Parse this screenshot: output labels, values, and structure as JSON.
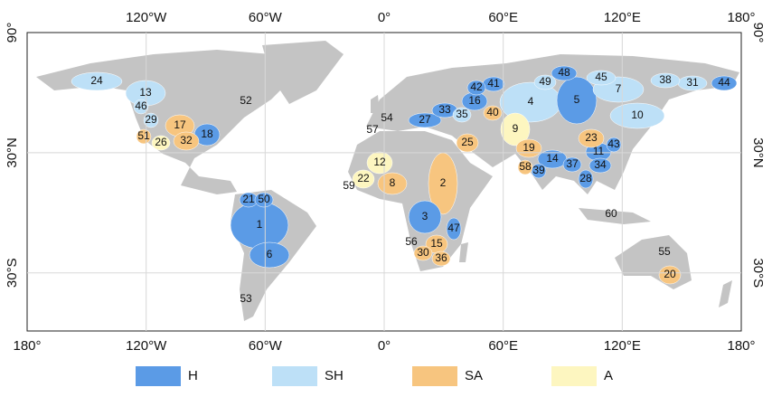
{
  "map": {
    "xlim": [
      -180,
      180
    ],
    "ylim": [
      -59,
      90
    ],
    "xticks": [
      {
        "value": -180,
        "label": "180°"
      },
      {
        "value": -120,
        "label": "120°W"
      },
      {
        "value": -60,
        "label": "60°W"
      },
      {
        "value": 0,
        "label": "0°"
      },
      {
        "value": 60,
        "label": "60°E"
      },
      {
        "value": 120,
        "label": "120°E"
      },
      {
        "value": 180,
        "label": "180°"
      }
    ],
    "yticks": [
      {
        "value": 90,
        "label": "90°"
      },
      {
        "value": 30,
        "label": "30°N"
      },
      {
        "value": -30,
        "label": "30°S"
      }
    ],
    "legend": [
      {
        "name": "H",
        "color": "#5b9be6"
      },
      {
        "name": "SH",
        "color": "#bde0f7"
      },
      {
        "name": "SA",
        "color": "#f7c57f"
      },
      {
        "name": "A",
        "color": "#fdf6c0"
      }
    ],
    "basins": [
      {
        "label": "1",
        "class": "H"
      },
      {
        "label": "2",
        "class": "SA"
      },
      {
        "label": "3",
        "class": "H"
      },
      {
        "label": "4",
        "class": "SH"
      },
      {
        "label": "5",
        "class": "H"
      },
      {
        "label": "6",
        "class": "H"
      },
      {
        "label": "7",
        "class": "SH"
      },
      {
        "label": "8",
        "class": "SA"
      },
      {
        "label": "9",
        "class": "A"
      },
      {
        "label": "10",
        "class": "SH"
      },
      {
        "label": "11",
        "class": "H"
      },
      {
        "label": "12",
        "class": "A"
      },
      {
        "label": "13",
        "class": "SH"
      },
      {
        "label": "14",
        "class": "H"
      },
      {
        "label": "15",
        "class": "SA"
      },
      {
        "label": "16",
        "class": "H"
      },
      {
        "label": "17",
        "class": "SA"
      },
      {
        "label": "18",
        "class": "H"
      },
      {
        "label": "19",
        "class": "SA"
      },
      {
        "label": "20",
        "class": "SA"
      },
      {
        "label": "21",
        "class": "H"
      },
      {
        "label": "22",
        "class": "A"
      },
      {
        "label": "23",
        "class": "SA"
      },
      {
        "label": "24",
        "class": "SH"
      },
      {
        "label": "25",
        "class": "SA"
      },
      {
        "label": "26",
        "class": "A"
      },
      {
        "label": "27",
        "class": "H"
      },
      {
        "label": "28",
        "class": "H"
      },
      {
        "label": "29",
        "class": "SH"
      },
      {
        "label": "30",
        "class": "SA"
      },
      {
        "label": "31",
        "class": "SH"
      },
      {
        "label": "32",
        "class": "SA"
      },
      {
        "label": "33",
        "class": "H"
      },
      {
        "label": "34",
        "class": "H"
      },
      {
        "label": "35",
        "class": "SH"
      },
      {
        "label": "36",
        "class": "SA"
      },
      {
        "label": "37",
        "class": "H"
      },
      {
        "label": "38",
        "class": "SH"
      },
      {
        "label": "39",
        "class": "H"
      },
      {
        "label": "40",
        "class": "SA"
      },
      {
        "label": "41",
        "class": "H"
      },
      {
        "label": "42",
        "class": "H"
      },
      {
        "label": "43",
        "class": "H"
      },
      {
        "label": "44",
        "class": "H"
      },
      {
        "label": "45",
        "class": "SH"
      },
      {
        "label": "46",
        "class": "SH"
      },
      {
        "label": "47",
        "class": "H"
      },
      {
        "label": "48",
        "class": "H"
      },
      {
        "label": "49",
        "class": "SH"
      },
      {
        "label": "50",
        "class": "H"
      },
      {
        "label": "51",
        "class": "SA"
      },
      {
        "label": "52",
        "class": null
      },
      {
        "label": "53",
        "class": null
      },
      {
        "label": "54",
        "class": null
      },
      {
        "label": "55",
        "class": null
      },
      {
        "label": "56",
        "class": null
      },
      {
        "label": "57",
        "class": null
      },
      {
        "label": "58",
        "class": "SA"
      },
      {
        "label": "59",
        "class": null
      },
      {
        "label": "60",
        "class": null
      }
    ]
  }
}
